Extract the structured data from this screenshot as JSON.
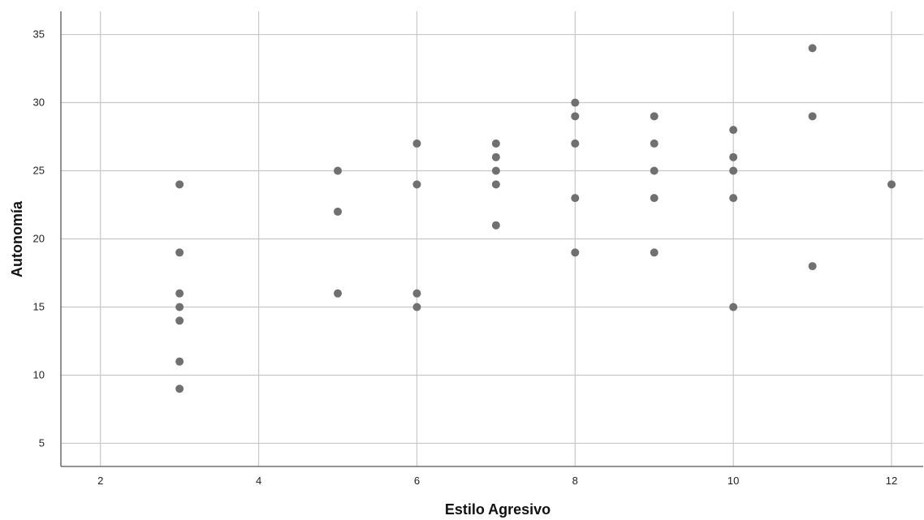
{
  "chart_data": {
    "type": "scatter",
    "title": "",
    "xlabel": "Estilo Agresivo",
    "ylabel": "Autonomía",
    "xlim": [
      1.5,
      12.4
    ],
    "ylim": [
      3.3,
      36.7
    ],
    "xticks": [
      2,
      4,
      6,
      8,
      10,
      12
    ],
    "yticks": [
      5,
      10,
      15,
      20,
      25,
      30,
      35
    ],
    "grid": true,
    "legend": "none",
    "marker_color": "#707070",
    "points": [
      {
        "x": 3,
        "y": 24
      },
      {
        "x": 3,
        "y": 19
      },
      {
        "x": 3,
        "y": 16
      },
      {
        "x": 3,
        "y": 15
      },
      {
        "x": 3,
        "y": 14
      },
      {
        "x": 3,
        "y": 11
      },
      {
        "x": 3,
        "y": 9
      },
      {
        "x": 5,
        "y": 25
      },
      {
        "x": 5,
        "y": 22
      },
      {
        "x": 5,
        "y": 16
      },
      {
        "x": 6,
        "y": 27
      },
      {
        "x": 6,
        "y": 24
      },
      {
        "x": 6,
        "y": 16
      },
      {
        "x": 6,
        "y": 15
      },
      {
        "x": 7,
        "y": 27
      },
      {
        "x": 7,
        "y": 26
      },
      {
        "x": 7,
        "y": 25
      },
      {
        "x": 7,
        "y": 24
      },
      {
        "x": 7,
        "y": 21
      },
      {
        "x": 8,
        "y": 30
      },
      {
        "x": 8,
        "y": 29
      },
      {
        "x": 8,
        "y": 27
      },
      {
        "x": 8,
        "y": 23
      },
      {
        "x": 8,
        "y": 19
      },
      {
        "x": 9,
        "y": 29
      },
      {
        "x": 9,
        "y": 27
      },
      {
        "x": 9,
        "y": 25
      },
      {
        "x": 9,
        "y": 23
      },
      {
        "x": 9,
        "y": 19
      },
      {
        "x": 10,
        "y": 28
      },
      {
        "x": 10,
        "y": 26
      },
      {
        "x": 10,
        "y": 25
      },
      {
        "x": 10,
        "y": 23
      },
      {
        "x": 10,
        "y": 15
      },
      {
        "x": 11,
        "y": 34
      },
      {
        "x": 11,
        "y": 29
      },
      {
        "x": 11,
        "y": 18
      },
      {
        "x": 12,
        "y": 24
      }
    ]
  }
}
